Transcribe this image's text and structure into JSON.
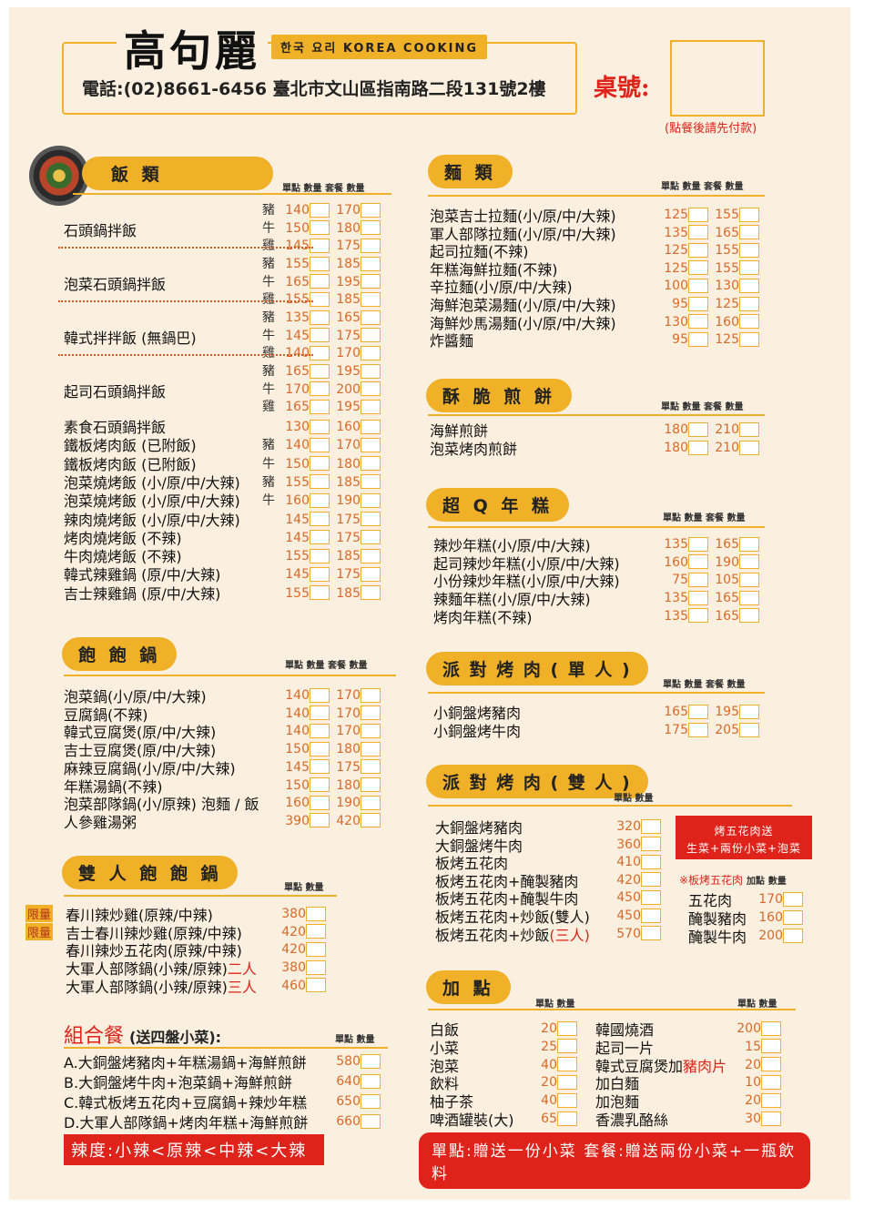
{
  "header": {
    "title": "高句麗",
    "badge": "한국 요리 KOREA COOKING",
    "contact": "電話:(02)8661-6456 臺北市文山區指南路二段131號2樓",
    "table_label": "桌號:",
    "pay_note": "(點餐後請先付款)"
  },
  "rice": {
    "title": "飯 類",
    "cols": [
      "單點",
      "數量",
      "套餐",
      "數量"
    ],
    "groups": [
      {
        "name": "石頭鍋拌飯",
        "rows": [
          [
            "豬",
            "140",
            "170"
          ],
          [
            "牛",
            "150",
            "180"
          ],
          [
            "雞",
            "145",
            "175"
          ]
        ]
      },
      {
        "name": "泡菜石頭鍋拌飯",
        "rows": [
          [
            "豬",
            "155",
            "185"
          ],
          [
            "牛",
            "165",
            "195"
          ],
          [
            "雞",
            "155",
            "185"
          ]
        ]
      },
      {
        "name": "韓式拌拌飯 (無鍋巴)",
        "rows": [
          [
            "豬",
            "135",
            "165"
          ],
          [
            "牛",
            "145",
            "175"
          ],
          [
            "雞",
            "140",
            "170"
          ]
        ]
      },
      {
        "name": "起司石頭鍋拌飯",
        "rows": [
          [
            "豬",
            "165",
            "195"
          ],
          [
            "牛",
            "170",
            "200"
          ],
          [
            "雞",
            "165",
            "195"
          ]
        ]
      }
    ],
    "items": [
      [
        "素食石頭鍋拌飯",
        "",
        "130",
        "160"
      ],
      [
        "鐵板烤肉飯 (已附飯)",
        "豬",
        "140",
        "170"
      ],
      [
        "鐵板烤肉飯 (已附飯)",
        "牛",
        "150",
        "180"
      ],
      [
        "泡菜燒烤飯 (小/原/中/大辣)",
        "豬",
        "155",
        "185"
      ],
      [
        "泡菜燒烤飯 (小/原/中/大辣)",
        "牛",
        "160",
        "190"
      ],
      [
        "辣肉燒烤飯 (小/原/中/大辣)",
        "",
        "145",
        "175"
      ],
      [
        "烤肉燒烤飯 (不辣)",
        "",
        "145",
        "175"
      ],
      [
        "牛肉燒烤飯 (不辣)",
        "",
        "155",
        "185"
      ],
      [
        "韓式辣雞鍋 (原/中/大辣)",
        "",
        "145",
        "175"
      ],
      [
        "吉士辣雞鍋 (原/中/大辣)",
        "",
        "155",
        "185"
      ]
    ]
  },
  "pot": {
    "title": "飽 飽 鍋",
    "cols": [
      "單點",
      "數量",
      "套餐",
      "數量"
    ],
    "items": [
      [
        "泡菜鍋(小/原/中/大辣)",
        "140",
        "170"
      ],
      [
        "豆腐鍋(不辣)",
        "140",
        "170"
      ],
      [
        "韓式豆腐煲(原/中/大辣)",
        "140",
        "170"
      ],
      [
        "吉士豆腐煲(原/中/大辣)",
        "150",
        "180"
      ],
      [
        "麻辣豆腐鍋(小/原/中/大辣)",
        "145",
        "175"
      ],
      [
        "年糕湯鍋(不辣)",
        "150",
        "180"
      ],
      [
        "泡菜部隊鍋(小/原辣) 泡麵 / 飯",
        "160",
        "190"
      ],
      [
        "人參雞湯粥",
        "390",
        "420"
      ]
    ]
  },
  "double_pot": {
    "title": "雙 人 飽 飽 鍋",
    "cols": [
      "單點",
      "數量"
    ],
    "limited": "限量",
    "items": [
      [
        "春川辣炒雞(原辣/中辣)",
        "",
        "380"
      ],
      [
        "吉士春川辣炒雞(原辣/中辣)",
        "",
        "420"
      ],
      [
        "春川辣炒五花肉(原辣/中辣)",
        "",
        "420"
      ],
      [
        "大軍人部隊鍋(小辣/原辣)",
        "二人",
        "380"
      ],
      [
        "大軍人部隊鍋(小辣/原辣)",
        "三人",
        "460"
      ]
    ]
  },
  "combo": {
    "title": "組合餐",
    "note": "(送四盤小菜):",
    "cols": [
      "單點",
      "數量"
    ],
    "items": [
      [
        "A.大銅盤烤豬肉+年糕湯鍋+海鮮煎餅",
        "580"
      ],
      [
        "B.大銅盤烤牛肉+泡菜鍋+海鮮煎餅",
        "640"
      ],
      [
        "C.韓式板烤五花肉+豆腐鍋+辣炒年糕",
        "650"
      ],
      [
        "D.大軍人部隊鍋+烤肉年糕+海鮮煎餅",
        "660"
      ]
    ],
    "spice": "辣度:小辣<原辣<中辣<大辣"
  },
  "noodles": {
    "title": "麵 類",
    "cols": [
      "單點",
      "數量",
      "套餐",
      "數量"
    ],
    "items": [
      [
        "泡菜吉士拉麵(小/原/中/大辣)",
        "125",
        "155"
      ],
      [
        "軍人部隊拉麵(小/原/中/大辣)",
        "135",
        "165"
      ],
      [
        "起司拉麵(不辣)",
        "125",
        "155"
      ],
      [
        "年糕海鮮拉麵(不辣)",
        "125",
        "155"
      ],
      [
        "辛拉麵(小/原/中/大辣)",
        "100",
        "130"
      ],
      [
        "海鮮泡菜湯麵(小/原/中/大辣)",
        "95",
        "125"
      ],
      [
        "海鮮炒馬湯麵(小/原/中/大辣)",
        "130",
        "160"
      ],
      [
        "炸醬麵",
        "95",
        "125"
      ]
    ]
  },
  "pancake": {
    "title": "酥 脆 煎 餅",
    "cols": [
      "單點",
      "數量",
      "套餐",
      "數量"
    ],
    "items": [
      [
        "海鮮煎餅",
        "180",
        "210"
      ],
      [
        "泡菜烤肉煎餅",
        "180",
        "210"
      ]
    ]
  },
  "ricecake": {
    "title": "超 Q 年 糕",
    "cols": [
      "單點",
      "數量",
      "套餐",
      "數量"
    ],
    "items": [
      [
        "辣炒年糕(小/原/中/大辣)",
        "135",
        "165"
      ],
      [
        "起司辣炒年糕(小/原/中/大辣)",
        "160",
        "190"
      ],
      [
        "小份辣炒年糕(小/原/中/大辣)",
        "75",
        "105"
      ],
      [
        "辣麵年糕(小/原/中/大辣)",
        "135",
        "165"
      ],
      [
        "烤肉年糕(不辣)",
        "135",
        "165"
      ]
    ]
  },
  "bbq_single": {
    "title": "派 對 烤 肉 ( 單 人 )",
    "cols": [
      "單點",
      "數量",
      "套餐",
      "數量"
    ],
    "items": [
      [
        "小銅盤烤豬肉",
        "165",
        "195"
      ],
      [
        "小銅盤烤牛肉",
        "175",
        "205"
      ]
    ]
  },
  "bbq_double": {
    "title": "派 對 烤 肉 ( 雙 人 )",
    "cols": [
      "單點",
      "數量"
    ],
    "items": [
      [
        "大銅盤烤豬肉",
        "",
        "320"
      ],
      [
        "大銅盤烤牛肉",
        "",
        "360"
      ],
      [
        "板烤五花肉",
        "",
        "410"
      ],
      [
        "板烤五花肉+醃製豬肉",
        "",
        "420"
      ],
      [
        "板烤五花肉+醃製牛肉",
        "",
        "450"
      ],
      [
        "板烤五花肉+炒飯(雙人)",
        "",
        "450"
      ],
      [
        "板烤五花肉+炒飯",
        "(三人)",
        "570"
      ]
    ],
    "promo_line1": "烤五花肉送",
    "promo_line2": "生菜+兩份小菜+泡菜",
    "addon_head": "※板烤五花肉",
    "addon_cols": [
      "加點",
      "數量"
    ],
    "addons": [
      [
        "五花肉",
        "170"
      ],
      [
        "醃製豬肉",
        "160"
      ],
      [
        "醃製牛肉",
        "200"
      ]
    ]
  },
  "extras": {
    "title": "加 點",
    "cols": [
      "單點",
      "數量"
    ],
    "left": [
      [
        "白飯",
        "20"
      ],
      [
        "小菜",
        "25"
      ],
      [
        "泡菜",
        "40"
      ],
      [
        "飲料",
        "20"
      ],
      [
        "柚子茶",
        "40"
      ],
      [
        "啤酒罐裝(大)",
        "65"
      ]
    ],
    "right": [
      [
        "韓國燒酒",
        "",
        "200"
      ],
      [
        "起司一片",
        "",
        "15"
      ],
      [
        "韓式豆腐煲加",
        "豬肉片",
        "20"
      ],
      [
        "加白麵",
        "",
        "10"
      ],
      [
        "加泡麵",
        "",
        "20"
      ],
      [
        "香濃乳酪絲",
        "",
        "30"
      ]
    ],
    "note": "單點:贈送一份小菜  套餐:贈送兩份小菜+一瓶飲料"
  }
}
